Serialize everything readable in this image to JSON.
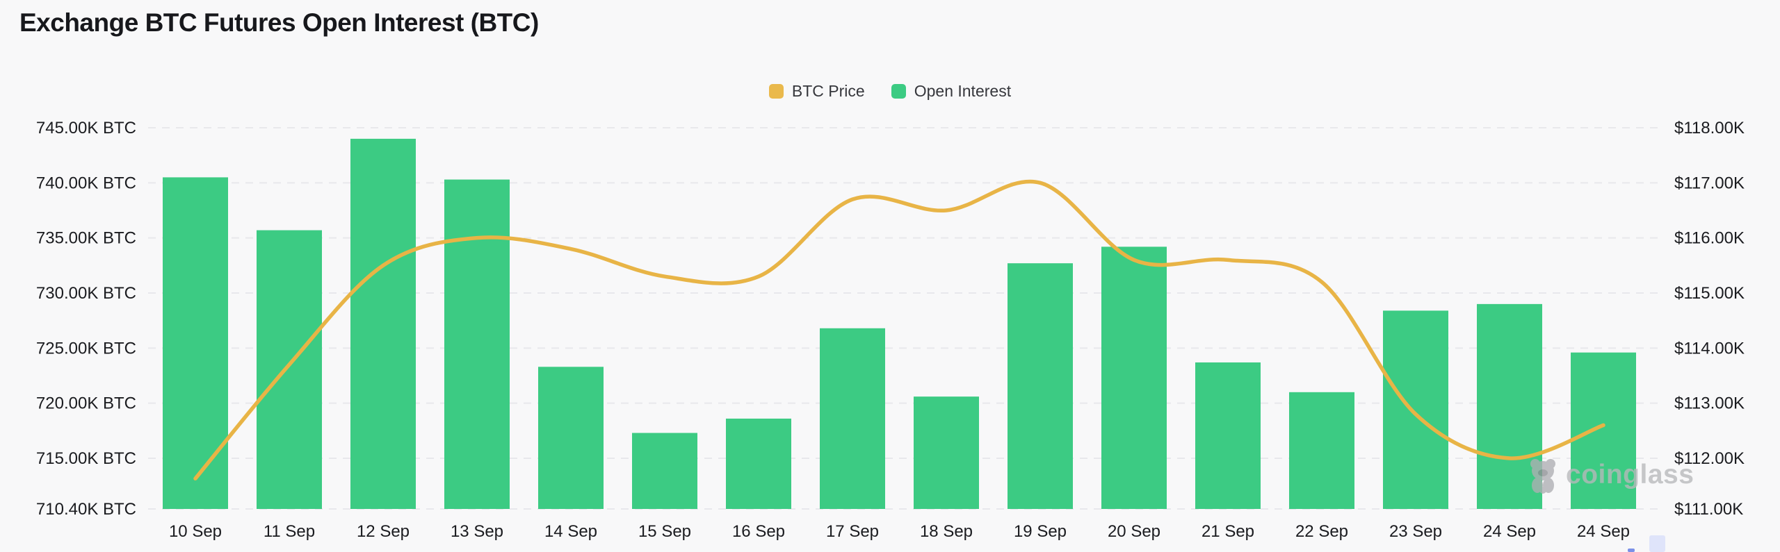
{
  "title": "Exchange BTC Futures Open Interest (BTC)",
  "legend": {
    "items": [
      {
        "label": "BTC Price",
        "color": "#eab94c"
      },
      {
        "label": "Open Interest",
        "color": "#3ccb83"
      }
    ]
  },
  "watermark": {
    "brand": "coinglass"
  },
  "colors": {
    "background": "#f8f8f9",
    "bar": "#3ccb83",
    "line": "#e8b446",
    "gridline": "#e8e8ec",
    "axis_text": "#1a1b1f"
  },
  "chart_data": {
    "type": "bar",
    "subtype": "bar+line dual-axis",
    "title": "Exchange BTC Futures Open Interest (BTC)",
    "grid": true,
    "legend_position": "top-center",
    "categories": [
      "10 Sep",
      "11 Sep",
      "12 Sep",
      "13 Sep",
      "14 Sep",
      "15 Sep",
      "16 Sep",
      "17 Sep",
      "18 Sep",
      "19 Sep",
      "20 Sep",
      "21 Sep",
      "22 Sep",
      "23 Sep",
      "24 Sep",
      "24 Sep"
    ],
    "series": [
      {
        "name": "Open Interest",
        "type": "bar",
        "axis": "left",
        "unit": "K BTC",
        "color": "#3ccb83",
        "values": [
          740.5,
          735.7,
          744.0,
          740.3,
          723.3,
          717.3,
          718.6,
          726.8,
          720.6,
          732.7,
          734.2,
          723.7,
          721.0,
          728.4,
          729.0,
          724.6
        ]
      },
      {
        "name": "BTC Price",
        "type": "line",
        "axis": "right",
        "unit": "$K",
        "color": "#e8b446",
        "values": [
          111.6,
          113.7,
          115.5,
          116.0,
          115.8,
          115.3,
          115.3,
          116.7,
          116.5,
          117.0,
          115.6,
          115.6,
          115.2,
          112.8,
          112.0,
          112.6
        ]
      }
    ],
    "left_axis": {
      "min": 710.4,
      "max": 745,
      "tick_values": [
        745,
        740,
        735,
        730,
        725,
        720,
        715,
        710.4
      ],
      "tick_labels": [
        "745.00K BTC",
        "740.00K BTC",
        "735.00K BTC",
        "730.00K BTC",
        "725.00K BTC",
        "720.00K BTC",
        "715.00K BTC",
        "710.40K BTC"
      ]
    },
    "right_axis": {
      "min": 111,
      "max": 118,
      "tick_values": [
        118,
        117,
        116,
        115,
        114,
        113,
        112,
        111
      ],
      "tick_labels": [
        "$118.00K",
        "$117.00K",
        "$116.00K",
        "$115.00K",
        "$114.00K",
        "$113.00K",
        "$112.00K",
        "$111.00K"
      ]
    }
  }
}
